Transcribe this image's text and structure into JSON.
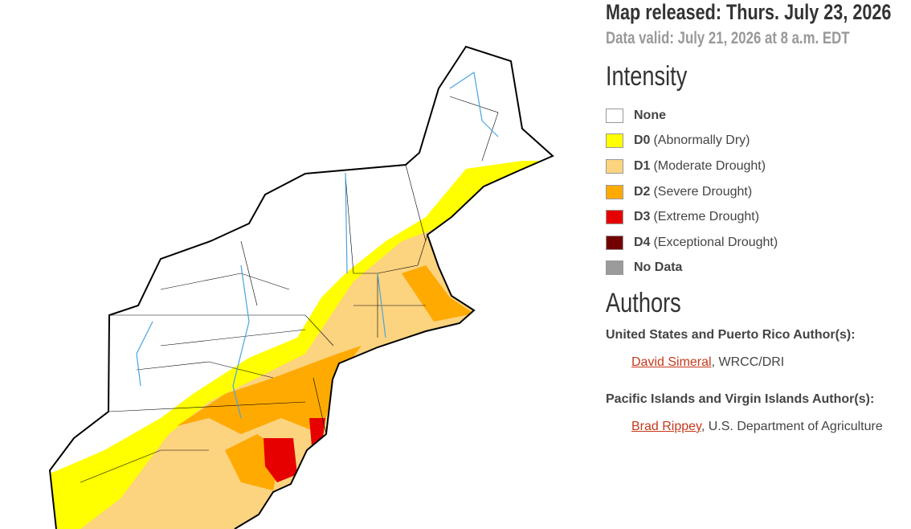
{
  "header": {
    "released": "Map released: Thurs. July 23, 2026",
    "valid": "Data valid: July 21, 2026 at 8 a.m. EDT"
  },
  "intensity": {
    "title": "Intensity",
    "items": [
      {
        "label": "None",
        "color": "#ffffff"
      },
      {
        "code": "D0",
        "label": "(Abnormally Dry)",
        "color": "#ffff00"
      },
      {
        "code": "D1",
        "label": "(Moderate Drought)",
        "color": "#fcd37f"
      },
      {
        "code": "D2",
        "label": "(Severe Drought)",
        "color": "#ffaa00"
      },
      {
        "code": "D3",
        "label": "(Extreme Drought)",
        "color": "#e60000"
      },
      {
        "code": "D4",
        "label": "(Exceptional Drought)",
        "color": "#730000"
      },
      {
        "label": "No Data",
        "color": "#9b9b9b"
      }
    ]
  },
  "authors": {
    "title": "Authors",
    "groups": [
      {
        "heading": "United States and Puerto Rico Author(s):",
        "people": [
          {
            "name": "David Simeral",
            "affiliation": ", WRCC/DRI"
          }
        ]
      },
      {
        "heading": "Pacific Islands and Virgin Islands Author(s):",
        "people": [
          {
            "name": "Brad Rippey",
            "affiliation": ", U.S. Department of Agriculture"
          }
        ]
      }
    ]
  }
}
